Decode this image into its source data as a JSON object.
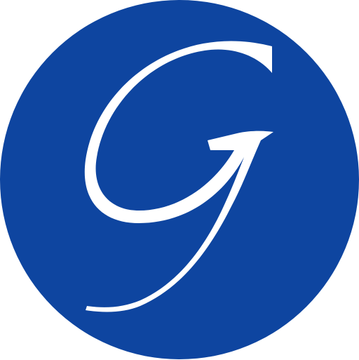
{
  "logo": {
    "letter": "G",
    "background_color": "#0E45A0",
    "letter_color": "#FFFFFF"
  }
}
